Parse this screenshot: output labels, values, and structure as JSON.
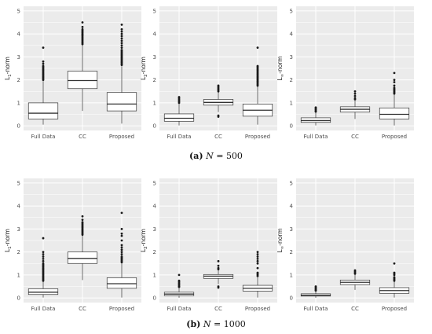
{
  "captions": [
    {
      "tag": "(a)",
      "var": "N",
      "eq": " = ",
      "val": "500"
    },
    {
      "tag": "(b)",
      "var": "N",
      "eq": " = ",
      "val": "1000"
    }
  ],
  "colors": {
    "panel_bg": "#ebebeb",
    "grid": "#ffffff",
    "box_fill": "#ffffff",
    "box_line": "#333333",
    "outlier": "#1a1a1a"
  },
  "chart_data": [
    {
      "type": "box",
      "ylabel": "L1-norm",
      "ylabel_main": "L",
      "ylabel_sub": "1",
      "ylabel_rest": "-norm",
      "ylim": [
        -0.2,
        5.2
      ],
      "yticks": [
        "0",
        "1",
        "2",
        "3",
        "4",
        "5"
      ],
      "categories": [
        "Full Data",
        "CC",
        "Proposed"
      ],
      "boxes": [
        {
          "min": 0.05,
          "q1": 0.3,
          "median": 0.55,
          "q3": 1.0,
          "max": 1.95,
          "outliers": [
            2.0,
            2.05,
            2.1,
            2.15,
            2.2,
            2.25,
            2.3,
            2.35,
            2.4,
            2.45,
            2.5,
            2.55,
            2.6,
            2.7,
            2.8,
            3.4
          ]
        },
        {
          "min": 0.65,
          "q1": 1.62,
          "median": 1.97,
          "q3": 2.38,
          "max": 3.5,
          "outliers": [
            3.55,
            3.6,
            3.65,
            3.7,
            3.75,
            3.8,
            3.85,
            3.9,
            3.95,
            4.0,
            4.05,
            4.1,
            4.15,
            4.2,
            4.3,
            4.5
          ]
        },
        {
          "min": 0.1,
          "q1": 0.65,
          "median": 0.95,
          "q3": 1.45,
          "max": 2.6,
          "outliers": [
            2.65,
            2.7,
            2.75,
            2.8,
            2.85,
            2.9,
            2.95,
            3.0,
            3.05,
            3.1,
            3.15,
            3.2,
            3.25,
            3.3,
            3.4,
            3.5,
            3.6,
            3.7,
            3.8,
            3.9,
            4.0,
            4.1,
            4.2,
            4.4
          ]
        }
      ]
    },
    {
      "type": "box",
      "ylabel": "L2-norm",
      "ylabel_main": "L",
      "ylabel_sub": "2",
      "ylabel_rest": "-norm",
      "ylim": [
        -0.2,
        5.2
      ],
      "yticks": [
        "0",
        "1",
        "2",
        "3",
        "4",
        "5"
      ],
      "categories": [
        "Full Data",
        "CC",
        "Proposed"
      ],
      "boxes": [
        {
          "min": 0.02,
          "q1": 0.2,
          "median": 0.33,
          "q3": 0.52,
          "max": 0.98,
          "outliers": [
            1.0,
            1.05,
            1.1,
            1.15,
            1.2,
            1.25
          ]
        },
        {
          "min": 0.6,
          "q1": 0.9,
          "median": 1.02,
          "q3": 1.15,
          "max": 1.48,
          "outliers": [
            0.4,
            0.45,
            1.5,
            1.55,
            1.6,
            1.65,
            1.7,
            1.75
          ]
        },
        {
          "min": 0.05,
          "q1": 0.42,
          "median": 0.68,
          "q3": 0.95,
          "max": 1.72,
          "outliers": [
            1.75,
            1.8,
            1.85,
            1.9,
            1.95,
            2.0,
            2.05,
            2.1,
            2.15,
            2.2,
            2.25,
            2.3,
            2.35,
            2.4,
            2.45,
            2.5,
            2.55,
            2.6,
            3.4
          ]
        }
      ]
    },
    {
      "type": "box",
      "ylabel": "L∞-norm",
      "ylabel_main": "L",
      "ylabel_sub": "∞",
      "ylabel_rest": "-norm",
      "ylim": [
        -0.2,
        5.2
      ],
      "yticks": [
        "0",
        "1",
        "2",
        "3",
        "4",
        "5"
      ],
      "categories": [
        "Full Data",
        "CC",
        "Proposed"
      ],
      "boxes": [
        {
          "min": 0.02,
          "q1": 0.15,
          "median": 0.23,
          "q3": 0.35,
          "max": 0.6,
          "outliers": [
            0.62,
            0.65,
            0.7,
            0.75,
            0.8
          ]
        },
        {
          "min": 0.3,
          "q1": 0.6,
          "median": 0.72,
          "q3": 0.83,
          "max": 1.1,
          "outliers": [
            1.15,
            1.2,
            1.3,
            1.4,
            1.5
          ]
        },
        {
          "min": 0.02,
          "q1": 0.3,
          "median": 0.5,
          "q3": 0.78,
          "max": 1.35,
          "outliers": [
            1.4,
            1.45,
            1.5,
            1.55,
            1.6,
            1.65,
            1.75,
            1.9,
            2.0,
            2.3
          ]
        }
      ]
    },
    {
      "type": "box",
      "ylabel": "L1-norm",
      "ylabel_main": "L",
      "ylabel_sub": "1",
      "ylabel_rest": "-norm",
      "ylim": [
        -0.2,
        5.2
      ],
      "yticks": [
        "0",
        "1",
        "2",
        "3",
        "4",
        "5"
      ],
      "categories": [
        "Full Data",
        "CC",
        "Proposed"
      ],
      "boxes": [
        {
          "min": 0.02,
          "q1": 0.15,
          "median": 0.25,
          "q3": 0.4,
          "max": 0.72,
          "outliers": [
            0.75,
            0.8,
            0.85,
            0.9,
            0.95,
            1.0,
            1.05,
            1.1,
            1.15,
            1.2,
            1.25,
            1.3,
            1.35,
            1.4,
            1.45,
            1.5,
            1.6,
            1.7,
            1.8,
            1.9,
            2.0,
            2.6
          ]
        },
        {
          "min": 0.78,
          "q1": 1.5,
          "median": 1.72,
          "q3": 2.0,
          "max": 2.72,
          "outliers": [
            2.75,
            2.8,
            2.85,
            2.9,
            2.95,
            3.0,
            3.05,
            3.1,
            3.15,
            3.2,
            3.25,
            3.3,
            3.4,
            3.55
          ]
        },
        {
          "min": 0.02,
          "q1": 0.42,
          "median": 0.62,
          "q3": 0.88,
          "max": 1.5,
          "outliers": [
            1.55,
            1.6,
            1.65,
            1.7,
            1.75,
            1.8,
            1.9,
            2.0,
            2.1,
            2.2,
            2.3,
            2.5,
            2.7,
            2.8,
            3.0,
            3.7
          ]
        }
      ]
    },
    {
      "type": "box",
      "ylabel": "L2-norm",
      "ylabel_main": "L",
      "ylabel_sub": "2",
      "ylabel_rest": "-norm",
      "ylim": [
        -0.2,
        5.2
      ],
      "yticks": [
        "0",
        "1",
        "2",
        "3",
        "4",
        "5"
      ],
      "categories": [
        "Full Data",
        "CC",
        "Proposed"
      ],
      "boxes": [
        {
          "min": 0.01,
          "q1": 0.1,
          "median": 0.17,
          "q3": 0.25,
          "max": 0.45,
          "outliers": [
            0.48,
            0.5,
            0.55,
            0.6,
            0.65,
            0.7,
            0.75,
            1.0
          ]
        },
        {
          "min": 0.6,
          "q1": 0.85,
          "median": 0.95,
          "q3": 1.02,
          "max": 1.2,
          "outliers": [
            0.45,
            0.5,
            1.25,
            1.3,
            1.4,
            1.6
          ]
        },
        {
          "min": 0.02,
          "q1": 0.3,
          "median": 0.42,
          "q3": 0.55,
          "max": 0.9,
          "outliers": [
            0.95,
            1.0,
            1.05,
            1.1,
            1.3,
            1.5,
            1.6,
            1.7,
            1.8,
            1.9,
            2.0
          ]
        }
      ]
    },
    {
      "type": "box",
      "ylabel": "L∞-norm",
      "ylabel_main": "L",
      "ylabel_sub": "∞",
      "ylabel_rest": "-norm",
      "ylim": [
        -0.2,
        5.2
      ],
      "yticks": [
        "0",
        "1",
        "2",
        "3",
        "4",
        "5"
      ],
      "categories": [
        "Full Data",
        "CC",
        "Proposed"
      ],
      "boxes": [
        {
          "min": 0.01,
          "q1": 0.08,
          "median": 0.12,
          "q3": 0.18,
          "max": 0.3,
          "outliers": [
            0.32,
            0.35,
            0.4,
            0.45,
            0.5
          ]
        },
        {
          "min": 0.35,
          "q1": 0.58,
          "median": 0.68,
          "q3": 0.78,
          "max": 1.0,
          "outliers": [
            1.05,
            1.1,
            1.15,
            1.2
          ]
        },
        {
          "min": 0.02,
          "q1": 0.2,
          "median": 0.32,
          "q3": 0.45,
          "max": 0.72,
          "outliers": [
            0.75,
            0.8,
            0.85,
            0.9,
            1.0,
            1.05,
            1.1,
            1.5
          ]
        }
      ]
    }
  ]
}
